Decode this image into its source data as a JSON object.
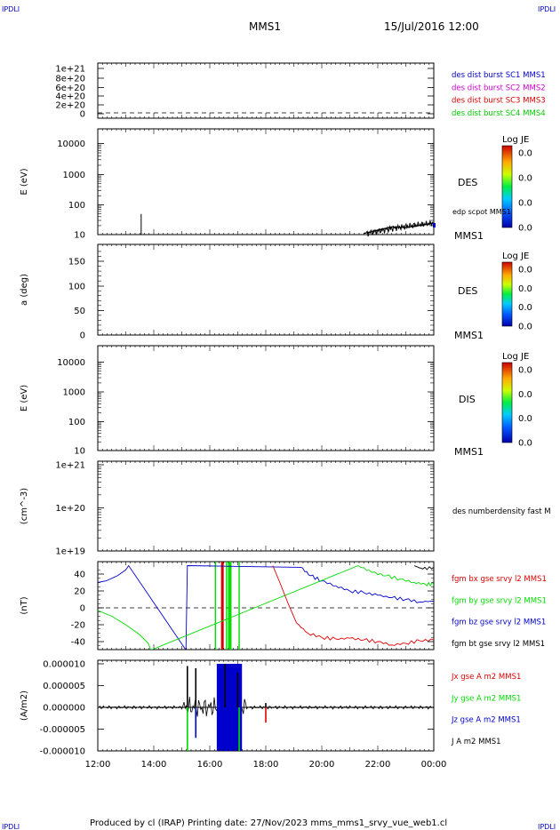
{
  "header": {
    "corner_left": "IPDLI",
    "corner_right": "IPDLI",
    "spacecraft": "MMS1",
    "datetime": "15/Jul/2016 12:00"
  },
  "footer": {
    "text": "Produced by cl (IRAP)   Printing date: 27/Nov/2023   mms_mms1_srvy_vue_web1.cl",
    "corner_left": "IPDLI",
    "corner_right": "IPDLI"
  },
  "colors": {
    "black": "#000000",
    "blue": "#0000cc",
    "magenta": "#cc00cc",
    "red": "#dd0000",
    "green": "#00cc00",
    "fgm_bx": "#dd0000",
    "fgm_by": "#00dd00",
    "fgm_bz": "#0000cc"
  },
  "x_axis": {
    "ticks": [
      "12:00",
      "14:00",
      "16:00",
      "18:00",
      "20:00",
      "22:00",
      "00:00"
    ]
  },
  "chart_data": [
    {
      "type": "line",
      "panel": "des_dist_burst",
      "ylabel": "",
      "ylim": [
        0,
        1.1e+21
      ],
      "y_ticks": [
        "1e+21",
        "8e+20",
        "6e+20",
        "4e+20",
        "2e+20",
        "0"
      ],
      "legend": [
        {
          "label": "des dist burst SC1 MMS1",
          "color": "#0000cc"
        },
        {
          "label": "des dist burst SC2 MMS2",
          "color": "#cc00cc"
        },
        {
          "label": "des dist burst SC3 MMS3",
          "color": "#dd0000"
        },
        {
          "label": "des dist burst SC4 MMS4",
          "color": "#00cc00"
        }
      ],
      "reference_line": 0
    },
    {
      "type": "heatmap",
      "panel": "des_energy",
      "ylabel": "E (eV)",
      "y_scale": "log",
      "y_ticks": [
        "10000",
        "1000",
        "100",
        "10"
      ],
      "instrument": "DES",
      "probe": "MMS1",
      "colorbar": {
        "title": "Log JE",
        "labels": [
          "0.0",
          "0.0",
          "0.0",
          "0.0"
        ]
      },
      "overlay_label": "edp scpot MMS1",
      "overlay_series": [
        {
          "t": 1.55,
          "v": 48
        },
        {
          "t": 9.5,
          "v": 11
        },
        {
          "t": 10.0,
          "v": 14
        },
        {
          "t": 10.5,
          "v": 18
        },
        {
          "t": 11.0,
          "v": 17
        },
        {
          "t": 11.5,
          "v": 20
        },
        {
          "t": 12.0,
          "v": 24
        }
      ]
    },
    {
      "type": "heatmap",
      "panel": "des_pitch",
      "ylabel": "a (deg)",
      "ylim": [
        0,
        180
      ],
      "y_ticks": [
        "150",
        "100",
        "50",
        "0"
      ],
      "instrument": "DES",
      "probe": "MMS1",
      "colorbar": {
        "title": "Log JE",
        "labels": [
          "0.0",
          "0.0",
          "0.0",
          "0.0"
        ]
      }
    },
    {
      "type": "heatmap",
      "panel": "dis_energy",
      "ylabel": "E (eV)",
      "y_scale": "log",
      "y_ticks": [
        "10000",
        "1000",
        "100",
        "10"
      ],
      "instrument": "DIS",
      "probe": "MMS1",
      "colorbar": {
        "title": "Log JE",
        "labels": [
          "0.0",
          "0.0",
          "0.0",
          "0.0"
        ]
      }
    },
    {
      "type": "line",
      "panel": "des_density",
      "ylabel": "(cm^-3)",
      "y_scale": "log",
      "y_ticks": [
        "1e+21",
        "1e+20",
        "1e+19"
      ],
      "legend": [
        {
          "label": "des numberdensity fast M",
          "color": "#000000"
        }
      ]
    },
    {
      "type": "line",
      "panel": "fgm_b",
      "ylabel": "(nT)",
      "ylim": [
        -50,
        50
      ],
      "y_ticks": [
        "40",
        "20",
        "0",
        "-20",
        "-40"
      ],
      "reference_line": 0,
      "legend": [
        {
          "label": "fgm bx gse srvy l2 MMS1",
          "color": "#dd0000"
        },
        {
          "label": "fgm by gse srvy l2 MMS1",
          "color": "#00dd00"
        },
        {
          "label": "fgm bz gse srvy l2 MMS1",
          "color": "#0000cc"
        },
        {
          "label": "fgm bt gse srvy l2 MMS1",
          "color": "#000000"
        }
      ],
      "series": [
        {
          "name": "fgm bz gse srvy l2 MMS1",
          "color": "#0000cc",
          "x": [
            0.0,
            0.3,
            0.7,
            1.0,
            1.1,
            3.15,
            3.2,
            7.25,
            7.6,
            8.0,
            8.5,
            9.0,
            9.5,
            10.0,
            10.5,
            11.0,
            11.5,
            12.0
          ],
          "y": [
            30,
            32,
            38,
            45,
            50,
            -50,
            50,
            48,
            38,
            32,
            26,
            20,
            18,
            15,
            12,
            10,
            7,
            8
          ]
        },
        {
          "name": "fgm by gse srvy l2 MMS1",
          "color": "#00dd00",
          "x": [
            0.0,
            0.5,
            1.0,
            1.5,
            1.8,
            1.9,
            9.3,
            9.8,
            10.3,
            10.8,
            11.3,
            11.7,
            12.0
          ],
          "y": [
            -3,
            -10,
            -20,
            -32,
            -42,
            -50,
            50,
            42,
            38,
            34,
            30,
            28,
            28
          ]
        },
        {
          "name": "fgm bx gse srvy l2 MMS1",
          "color": "#dd0000",
          "x": [
            6.25,
            6.5,
            6.8,
            7.1,
            7.5,
            8.0,
            8.5,
            9.0,
            9.5,
            10.0,
            10.5,
            11.0,
            11.5,
            12.0
          ],
          "y": [
            50,
            30,
            5,
            -18,
            -30,
            -35,
            -37,
            -36,
            -38,
            -40,
            -44,
            -42,
            -39,
            -38
          ]
        },
        {
          "name": "fgm bt gse srvy l2 MMS1",
          "color": "#000000",
          "x": [
            11.3,
            11.6,
            12.0
          ],
          "y": [
            50,
            46,
            48
          ]
        }
      ],
      "bursts": [
        {
          "t": 4.2,
          "color": "#00dd00"
        },
        {
          "t": 4.45,
          "color": "#dd0000"
        },
        {
          "t": 4.6,
          "color": "#00dd00"
        },
        {
          "t": 4.75,
          "color": "#00dd00"
        },
        {
          "t": 5.05,
          "color": "#00dd00"
        }
      ]
    },
    {
      "type": "line",
      "panel": "curlometer_j",
      "ylabel": "(A/m2)",
      "ylim": [
        -1e-05,
        1e-05
      ],
      "y_ticks": [
        "0.000010",
        "0.000005",
        "0.000000",
        "-0.000005",
        "-0.000010"
      ],
      "reference_line": 0,
      "legend": [
        {
          "label": "Jx gse A m2 MMS1",
          "color": "#dd0000"
        },
        {
          "label": "Jy gse A m2 MMS1",
          "color": "#00dd00"
        },
        {
          "label": "Jz gse A m2 MMS1",
          "color": "#0000cc"
        },
        {
          "label": "J A m2 MMS1",
          "color": "#000000"
        }
      ],
      "spikes": [
        {
          "t": 3.2,
          "v": 9.5e-06,
          "color": "#000000"
        },
        {
          "t": 3.2,
          "v": -1e-05,
          "color": "#00dd00"
        },
        {
          "t": 3.5,
          "v": 9e-06,
          "color": "#000000"
        },
        {
          "t": 3.5,
          "v": -7e-06,
          "color": "#0000cc"
        },
        {
          "t": 4.6,
          "v": 1e-05,
          "color": "#0000cc"
        },
        {
          "t": 4.6,
          "v": -1e-05,
          "color": "#0000cc"
        },
        {
          "t": 4.55,
          "v": 1e-05,
          "color": "#000000"
        },
        {
          "t": 5.0,
          "v": 8e-06,
          "color": "#000000"
        },
        {
          "t": 5.05,
          "v": -1e-05,
          "color": "#00dd00"
        },
        {
          "t": 6.0,
          "v": -3.5e-06,
          "color": "#dd0000"
        },
        {
          "t": 6.0,
          "v": 1e-06,
          "color": "#000000"
        }
      ],
      "burst_block": {
        "t_start": 4.25,
        "t_end": 5.15,
        "v_min": -1e-05,
        "v_max": 1e-05,
        "color": "#0000cc"
      }
    }
  ]
}
